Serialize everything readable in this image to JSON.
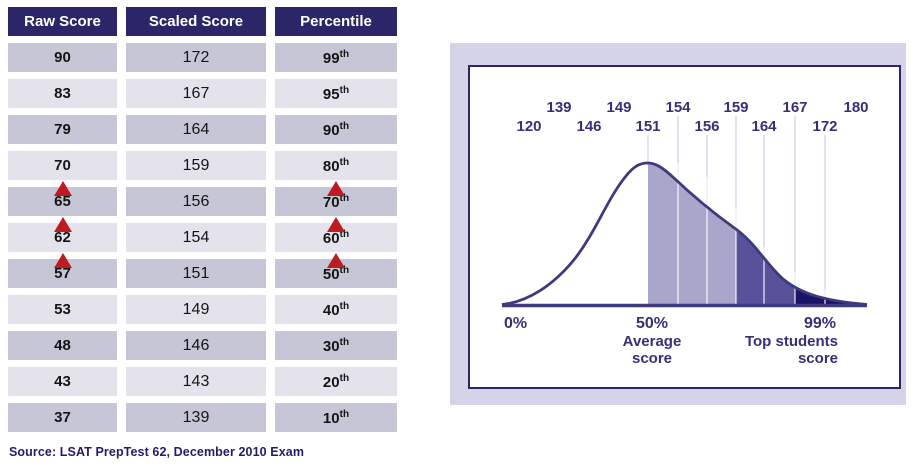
{
  "colors": {
    "table_header_bg": "#2b2668",
    "row_dark": "#c7c6d7",
    "row_light": "#e4e3ec",
    "arrow_red": "#bb1d22",
    "navy_text": "#211c6b",
    "card_bg": "#d5d3e8",
    "panel_border": "#2b2668",
    "curve_stroke": "#3e3a7d",
    "fill_light": "#a9a6cb",
    "fill_medium": "#575299",
    "fill_dark": "#1a1464",
    "gridline": "#e2e2ee"
  },
  "chart_data": [
    {
      "type": "table",
      "columns": [
        "Raw Score",
        "Scaled Score",
        "Percentile"
      ],
      "percentile_suffix": "th",
      "rows": [
        {
          "raw": "90",
          "scaled": "172",
          "pct": "99"
        },
        {
          "raw": "83",
          "scaled": "167",
          "pct": "95"
        },
        {
          "raw": "79",
          "scaled": "164",
          "pct": "90"
        },
        {
          "raw": "70",
          "scaled": "159",
          "pct": "80"
        },
        {
          "raw": "65",
          "scaled": "156",
          "pct": "70"
        },
        {
          "raw": "62",
          "scaled": "154",
          "pct": "60"
        },
        {
          "raw": "57",
          "scaled": "151",
          "pct": "50"
        },
        {
          "raw": "53",
          "scaled": "149",
          "pct": "40"
        },
        {
          "raw": "48",
          "scaled": "146",
          "pct": "30"
        },
        {
          "raw": "43",
          "scaled": "143",
          "pct": "20"
        },
        {
          "raw": "37",
          "scaled": "139",
          "pct": "10"
        }
      ],
      "arrow_above_rows": [
        4,
        5,
        6
      ],
      "arrow_columns": [
        0,
        2
      ],
      "source": "Source: LSAT PrepTest 62, December 2010 Exam"
    },
    {
      "type": "area",
      "x_ticks": [
        "120",
        "139",
        "146",
        "149",
        "151",
        "154",
        "156",
        "159",
        "164",
        "167",
        "172",
        "180"
      ],
      "gridline_ticks": [
        "151",
        "154",
        "156",
        "159",
        "164",
        "167",
        "172"
      ],
      "shaded_regions": [
        {
          "from": "151",
          "to": "159",
          "color": "#a9a6cb"
        },
        {
          "from": "159",
          "to": "167",
          "color": "#575299"
        },
        {
          "from": "167",
          "to": "180",
          "color": "#1a1464"
        }
      ],
      "percentile_axis": {
        "left": {
          "pct": "0%"
        },
        "middle": {
          "pct": "50%",
          "label_lines": [
            "Average",
            "score"
          ]
        },
        "right": {
          "pct": "99%",
          "label_lines": [
            "Top students",
            "score"
          ]
        }
      }
    }
  ]
}
